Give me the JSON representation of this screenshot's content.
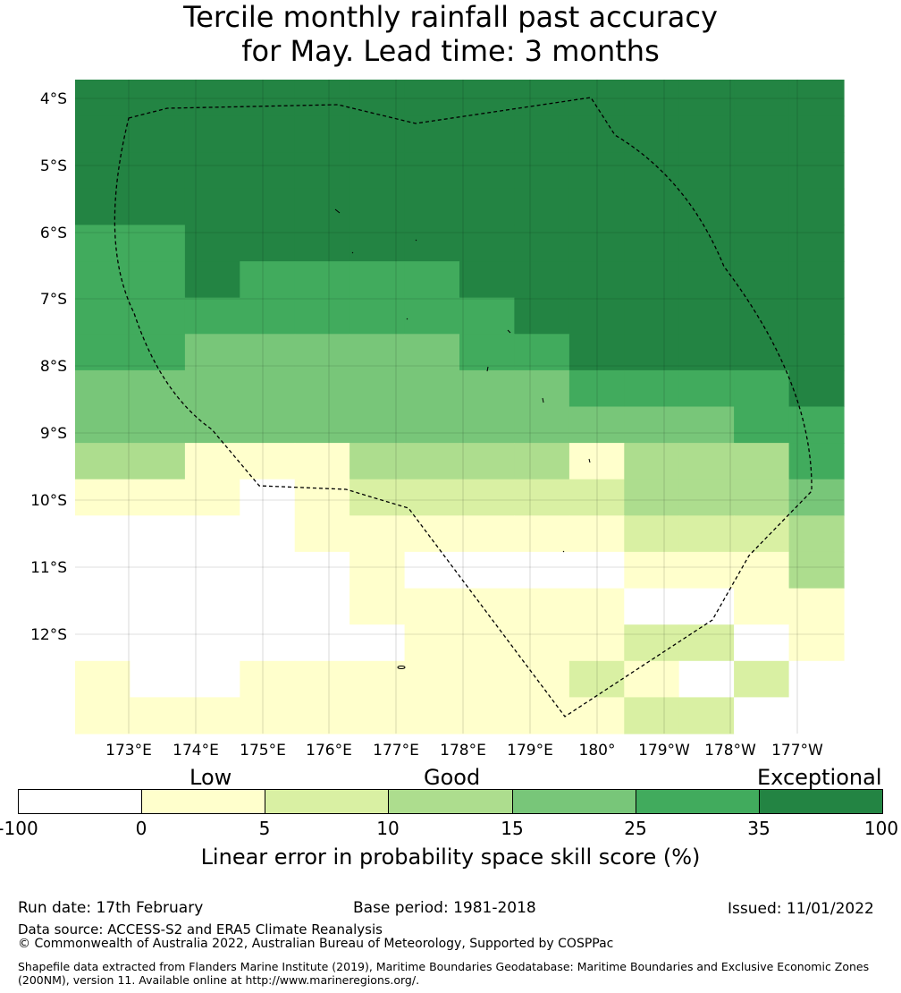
{
  "title": {
    "line1": "Tercile monthly rainfall past accuracy",
    "line2": "for May. Lead time: 3 months"
  },
  "map": {
    "lat_labels": [
      "4°S",
      "5°S",
      "6°S",
      "7°S",
      "8°S",
      "9°S",
      "10°S",
      "11°S",
      "12°S"
    ],
    "lon_labels": [
      "173°E",
      "174°E",
      "175°E",
      "176°E",
      "177°E",
      "178°E",
      "179°E",
      "180°",
      "179°W",
      "178°W",
      "177°W"
    ],
    "colors": {
      "c0": "#ffffff",
      "c1": "#ffffcc",
      "c2": "#d9f0a3",
      "c3": "#addd8e",
      "c4": "#78c679",
      "c5": "#41ab5d",
      "c6": "#238443"
    }
  },
  "colorbar": {
    "category_low": "Low",
    "category_good": "Good",
    "category_exceptional": "Exceptional",
    "ticks": [
      "-100",
      "0",
      "5",
      "10",
      "15",
      "25",
      "35",
      "100"
    ],
    "label": "Linear error in probability space skill score (%)"
  },
  "footer": {
    "run_date": "Run date: 17th February",
    "base_period": "Base period: 1981-2018",
    "issued": "Issued: 11/01/2022",
    "data_source": "Data source: ACCESS-S2 and ERA5 Climate Reanalysis",
    "copyright": "© Commonwealth of Australia 2022, Australian Bureau of Meteorology, Supported by COSPPac",
    "shapefile": "Shapefile data extracted from Flanders Marine Institute (2019), Maritime Boundaries Geodatabase: Maritime Boundaries and Exclusive Economic Zones (200NM), version 11. Available online at http://www.marineregions.org/."
  }
}
